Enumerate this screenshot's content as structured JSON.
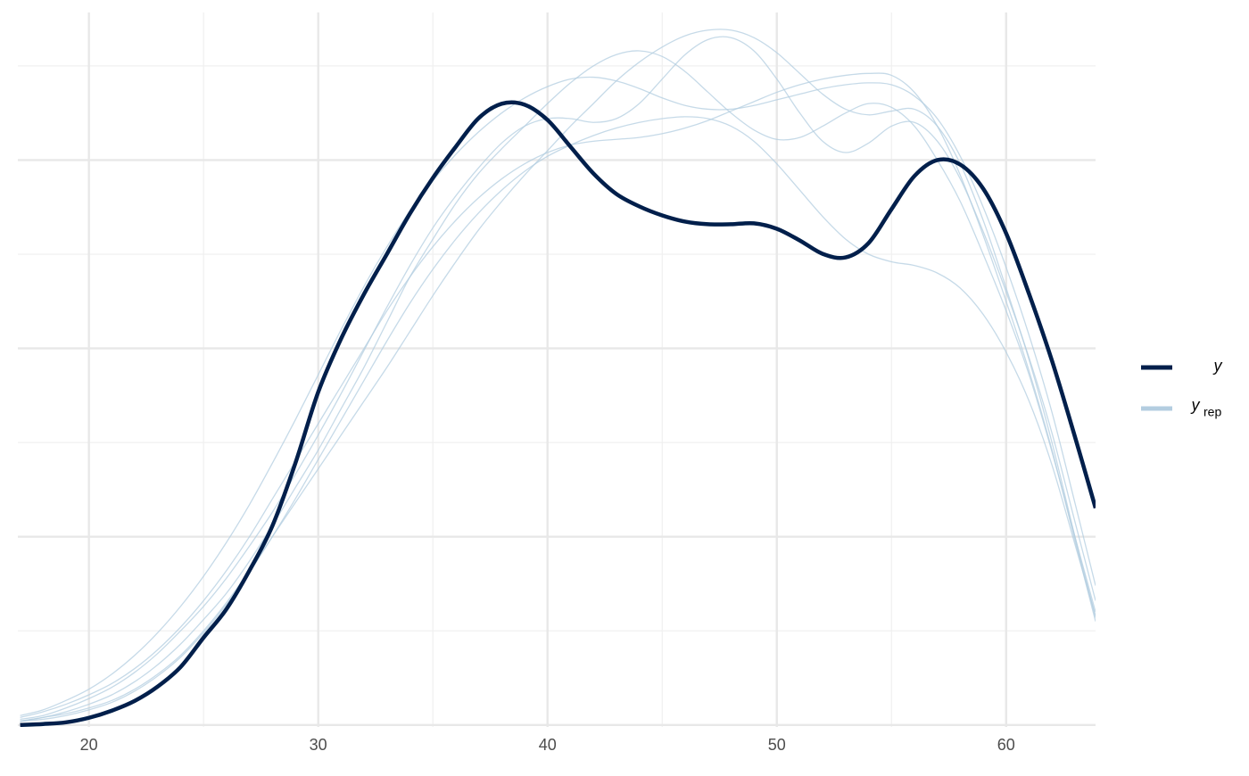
{
  "chart_data": {
    "type": "density_overlay",
    "x": [
      17,
      18,
      19,
      20,
      21,
      22,
      23,
      24,
      25,
      26,
      27,
      28,
      29,
      30,
      31,
      32,
      33,
      34,
      35,
      36,
      37,
      38,
      39,
      40,
      41,
      42,
      43,
      44,
      45,
      46,
      47,
      48,
      49,
      50,
      51,
      52,
      53,
      54,
      55,
      56,
      57,
      58,
      59,
      60,
      61,
      62,
      63,
      63.9
    ],
    "series": [
      {
        "name": "y",
        "color": "#011f4b",
        "values": [
          0,
          5e-05,
          0.00014,
          0.00038,
          0.00076,
          0.00128,
          0.00204,
          0.00308,
          0.00464,
          0.00616,
          0.0082,
          0.01057,
          0.01389,
          0.01768,
          0.02052,
          0.02289,
          0.02502,
          0.02716,
          0.02905,
          0.03071,
          0.03223,
          0.03299,
          0.03294,
          0.03213,
          0.03071,
          0.02929,
          0.0282,
          0.02754,
          0.02706,
          0.02673,
          0.02659,
          0.02659,
          0.02664,
          0.02635,
          0.02573,
          0.02502,
          0.02483,
          0.02559,
          0.02739,
          0.02915,
          0.03,
          0.02976,
          0.02848,
          0.02611,
          0.02289,
          0.01934,
          0.01531,
          0.01152
        ]
      }
    ],
    "yrep": {
      "name": "y",
      "subscript": "rep",
      "color": "#b3cde0",
      "draws": [
        [
          0.0002,
          0.0004,
          0.0007,
          0.0011,
          0.0016,
          0.0023,
          0.0032,
          0.0043,
          0.0056,
          0.007,
          0.0087,
          0.0106,
          0.0126,
          0.0146,
          0.0168,
          0.019,
          0.0214,
          0.0238,
          0.0258,
          0.0277,
          0.0293,
          0.0306,
          0.0318,
          0.033,
          0.0341,
          0.035,
          0.0356,
          0.0358,
          0.0355,
          0.0347,
          0.0336,
          0.0325,
          0.0316,
          0.0311,
          0.0312,
          0.0318,
          0.0325,
          0.033,
          0.0328,
          0.0318,
          0.03,
          0.0278,
          0.025,
          0.022,
          0.0186,
          0.0145,
          0.01,
          0.006
        ],
        [
          0.0004,
          0.0007,
          0.0011,
          0.0016,
          0.0022,
          0.003,
          0.004,
          0.0052,
          0.0066,
          0.0082,
          0.01,
          0.012,
          0.014,
          0.016,
          0.018,
          0.02,
          0.022,
          0.0238,
          0.0254,
          0.0268,
          0.028,
          0.029,
          0.0298,
          0.0304,
          0.0308,
          0.031,
          0.0311,
          0.0312,
          0.0314,
          0.0317,
          0.0321,
          0.0326,
          0.0331,
          0.0336,
          0.034,
          0.0343,
          0.0345,
          0.0346,
          0.0345,
          0.0336,
          0.0318,
          0.0292,
          0.026,
          0.0225,
          0.0188,
          0.0146,
          0.0098,
          0.0055
        ],
        [
          0.0003,
          0.0005,
          0.0009,
          0.0014,
          0.002,
          0.0028,
          0.0038,
          0.005,
          0.0063,
          0.0078,
          0.0095,
          0.0113,
          0.0133,
          0.0154,
          0.0176,
          0.0199,
          0.0222,
          0.0244,
          0.0264,
          0.0281,
          0.0296,
          0.0309,
          0.0318,
          0.0322,
          0.0322,
          0.032,
          0.0322,
          0.033,
          0.0343,
          0.0356,
          0.0364,
          0.0365,
          0.0358,
          0.0343,
          0.0325,
          0.031,
          0.0304,
          0.0309,
          0.0318,
          0.032,
          0.031,
          0.029,
          0.0262,
          0.023,
          0.0195,
          0.0155,
          0.0108,
          0.0066
        ],
        [
          0.0002,
          0.0003,
          0.0005,
          0.0008,
          0.0012,
          0.0018,
          0.0026,
          0.0036,
          0.0049,
          0.0064,
          0.0081,
          0.01,
          0.012,
          0.0141,
          0.0162,
          0.0183,
          0.0204,
          0.0224,
          0.0242,
          0.0258,
          0.0272,
          0.0284,
          0.0294,
          0.0302,
          0.0308,
          0.0313,
          0.0317,
          0.032,
          0.0322,
          0.0323,
          0.0322,
          0.0318,
          0.031,
          0.0298,
          0.0284,
          0.027,
          0.0258,
          0.025,
          0.0246,
          0.0244,
          0.024,
          0.0232,
          0.0218,
          0.0198,
          0.0172,
          0.0138,
          0.0096,
          0.0058
        ],
        [
          0.0005,
          0.0008,
          0.0013,
          0.0019,
          0.0027,
          0.0037,
          0.0049,
          0.0063,
          0.0079,
          0.0097,
          0.0117,
          0.0139,
          0.0162,
          0.0186,
          0.021,
          0.0233,
          0.0254,
          0.0273,
          0.0289,
          0.0303,
          0.0315,
          0.0325,
          0.0333,
          0.0339,
          0.0343,
          0.0344,
          0.0342,
          0.0338,
          0.0333,
          0.0329,
          0.0327,
          0.0327,
          0.0329,
          0.0332,
          0.0335,
          0.0338,
          0.034,
          0.0341,
          0.034,
          0.0334,
          0.0322,
          0.0302,
          0.0275,
          0.0243,
          0.0207,
          0.0166,
          0.0118,
          0.0074
        ],
        [
          0.0002,
          0.0004,
          0.0006,
          0.0009,
          0.0013,
          0.0019,
          0.0027,
          0.0037,
          0.005,
          0.0065,
          0.0082,
          0.01,
          0.0118,
          0.0136,
          0.0154,
          0.0172,
          0.019,
          0.0209,
          0.0228,
          0.0246,
          0.0263,
          0.0278,
          0.0292,
          0.0305,
          0.0318,
          0.033,
          0.0342,
          0.0352,
          0.036,
          0.0366,
          0.0369,
          0.0369,
          0.0365,
          0.0357,
          0.0346,
          0.0335,
          0.0327,
          0.0324,
          0.0326,
          0.0327,
          0.0318,
          0.0298,
          0.0268,
          0.0232,
          0.0194,
          0.015,
          0.01,
          0.0057
        ]
      ]
    },
    "xlim": [
      16.9,
      63.9
    ],
    "xticks": [
      20,
      30,
      40,
      50,
      60
    ],
    "xminor": [
      25,
      35,
      45,
      55
    ],
    "ylim": [
      -0.0002,
      0.0385
    ],
    "yticks": [
      0,
      0.01,
      0.02,
      0.03
    ],
    "yminor": [
      0.005,
      0.015,
      0.025,
      0.035
    ],
    "show_ytick_labels": false,
    "grid": true,
    "legend": "right"
  }
}
